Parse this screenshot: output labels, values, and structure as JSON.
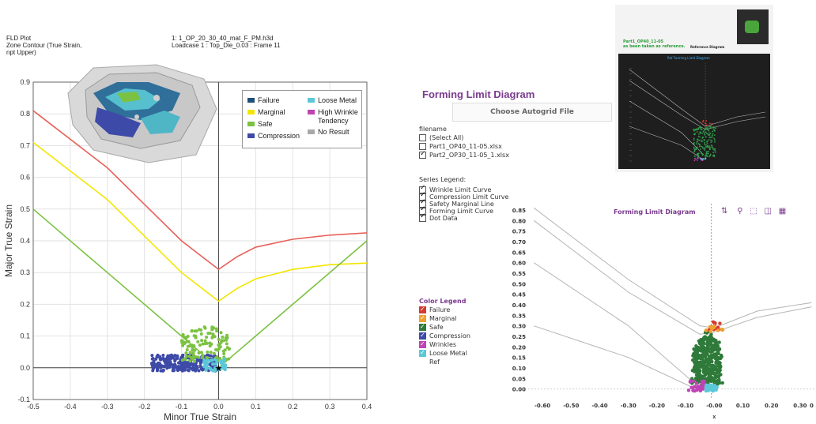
{
  "left_panel": {
    "header_left": [
      "FLD Plot",
      "Zone Contour (True Strain,",
      "npt Upper)"
    ],
    "header_right": [
      "1: 1_OP_20_30_40_mat_F_PM.h3d",
      "Loadcase 1 : Top_Die_0.03 : Frame 11"
    ],
    "legend": [
      {
        "label": "Failure",
        "color": "#1f4e79"
      },
      {
        "label": "Loose Metal",
        "color": "#5bc8d8"
      },
      {
        "label": "Marginal",
        "color": "#f2e600"
      },
      {
        "label": "High Wrinkle",
        "color": "#c043b5"
      },
      {
        "label": "Tendency",
        "color": ""
      },
      {
        "label": "Safe",
        "color": "#7cc242"
      },
      {
        "label": "Compression",
        "color": "#3d4aa8"
      },
      {
        "label": "No Result",
        "color": "#a8a8a8"
      }
    ]
  },
  "right_panel": {
    "title": "Forming Limit Diagram",
    "choose_button": "Choose Autogrid File",
    "filename_label": "filename",
    "files": [
      {
        "label": "(Select All)",
        "checked": false
      },
      {
        "label": "Part1_OP40_11-05.xlsx",
        "checked": false
      },
      {
        "label": "Part2_OP30_11-05_1.xlsx",
        "checked": true
      }
    ],
    "series_legend_label": "Series Legend:",
    "series_legend": [
      "Wrinkle Limit Curve",
      "Compression Limit Curve",
      "Safety Marginal Line",
      "Forming Limit Curve",
      "Dot Data"
    ],
    "color_legend_label": "Color Legend",
    "color_legend": [
      {
        "label": "Failure",
        "color": "#d63a2f"
      },
      {
        "label": "Marginal",
        "color": "#f0a030"
      },
      {
        "label": "Safe",
        "color": "#2f7a3a"
      },
      {
        "label": "Compression",
        "color": "#3d4aa8"
      },
      {
        "label": "Wrinkles",
        "color": "#c043b5"
      },
      {
        "label": "Loose Metal",
        "color": "#5bc8d8"
      },
      {
        "label": "Ref",
        "color": ""
      }
    ],
    "chart_title": "Forming Limit Diagram",
    "toolbar_icons": [
      "filter-icon",
      "zoom-icon",
      "select-icon",
      "compare-icon",
      "table-icon"
    ],
    "reference_note": [
      "Part1_OP40_11-05",
      "as been taken as reference."
    ],
    "reference_diagram_label": "Reference Diagram",
    "ref_chart_title": "Ref Forming Limit Diagram"
  },
  "chart_data": [
    {
      "type": "line",
      "xlabel": "Minor True Strain",
      "ylabel": "Major True Strain",
      "xlim": [
        -0.5,
        0.4
      ],
      "ylim": [
        -0.1,
        0.9
      ],
      "x_ticks": [
        "-0.5",
        "-0.4",
        "-0.3",
        "-0.2",
        "-0.1",
        "0.0",
        "0.1",
        "0.2",
        "0.3",
        "0.4"
      ],
      "y_ticks": [
        "-0.1",
        "0.0",
        "0.1",
        "0.2",
        "0.3",
        "0.4",
        "0.5",
        "0.6",
        "0.7",
        "0.8",
        "0.9"
      ],
      "grid": true,
      "series": [
        {
          "name": "Failure",
          "color": "#e8605a",
          "x": [
            -0.5,
            -0.3,
            -0.1,
            0.0,
            0.05,
            0.1,
            0.2,
            0.3,
            0.4
          ],
          "y": [
            0.81,
            0.63,
            0.4,
            0.31,
            0.35,
            0.38,
            0.405,
            0.418,
            0.425
          ]
        },
        {
          "name": "Marginal",
          "color": "#f2e600",
          "x": [
            -0.5,
            -0.3,
            -0.1,
            0.0,
            0.05,
            0.1,
            0.2,
            0.3,
            0.4
          ],
          "y": [
            0.71,
            0.53,
            0.3,
            0.21,
            0.25,
            0.28,
            0.31,
            0.325,
            0.33
          ]
        },
        {
          "name": "Safe",
          "color": "#7cc242",
          "x": [
            -0.5,
            -0.3,
            -0.1,
            0.0,
            0.2,
            0.4
          ],
          "y": [
            0.5,
            0.3,
            0.1,
            0.0,
            0.2,
            0.4
          ]
        }
      ],
      "scatter": [
        {
          "name": "Compression",
          "color": "#3d4aa8",
          "x_range": [
            -0.18,
            0.0
          ],
          "y_range": [
            -0.01,
            0.04
          ]
        },
        {
          "name": "Safe",
          "color": "#7cc242",
          "x_range": [
            -0.1,
            0.03
          ],
          "y_range": [
            0.02,
            0.14
          ]
        },
        {
          "name": "Loose Metal",
          "color": "#5bc8d8",
          "x_range": [
            -0.04,
            0.02
          ],
          "y_range": [
            -0.01,
            0.03
          ]
        }
      ]
    },
    {
      "type": "scatter",
      "xlabel": "x",
      "xlim": [
        -0.65,
        0.35
      ],
      "ylim": [
        -0.02,
        0.88
      ],
      "x_ticks": [
        "-0.60",
        "-0.50",
        "-0.40",
        "-0.30",
        "-0.20",
        "-0.10",
        "-0.00",
        "0.10",
        "0.20",
        "0.30",
        "0"
      ],
      "y_ticks": [
        "0.00",
        "0.05",
        "0.10",
        "0.15",
        "0.20",
        "0.25",
        "0.30",
        "0.35",
        "0.40",
        "0.45",
        "0.50",
        "0.55",
        "0.60",
        "0.65",
        "0.70",
        "0.75",
        "0.80",
        "0.85"
      ],
      "series": [
        {
          "name": "Forming Limit Curve",
          "color": "#bbbbbb"
        },
        {
          "name": "Safe",
          "color": "#2f7a3a",
          "x_range": [
            -0.08,
            0.03
          ],
          "y_range": [
            0.01,
            0.29
          ]
        },
        {
          "name": "Failure",
          "color": "#d63a2f",
          "x_range": [
            -0.02,
            0.02
          ],
          "y_range": [
            0.28,
            0.32
          ]
        },
        {
          "name": "Marginal",
          "color": "#f0a030",
          "x_range": [
            -0.03,
            0.03
          ],
          "y_range": [
            0.26,
            0.3
          ]
        },
        {
          "name": "Wrinkles",
          "color": "#c043b5",
          "x_range": [
            -0.09,
            -0.03
          ],
          "y_range": [
            -0.01,
            0.04
          ]
        },
        {
          "name": "Loose Metal",
          "color": "#5bc8d8",
          "x_range": [
            -0.03,
            0.01
          ],
          "y_range": [
            -0.01,
            0.02
          ]
        }
      ]
    }
  ]
}
